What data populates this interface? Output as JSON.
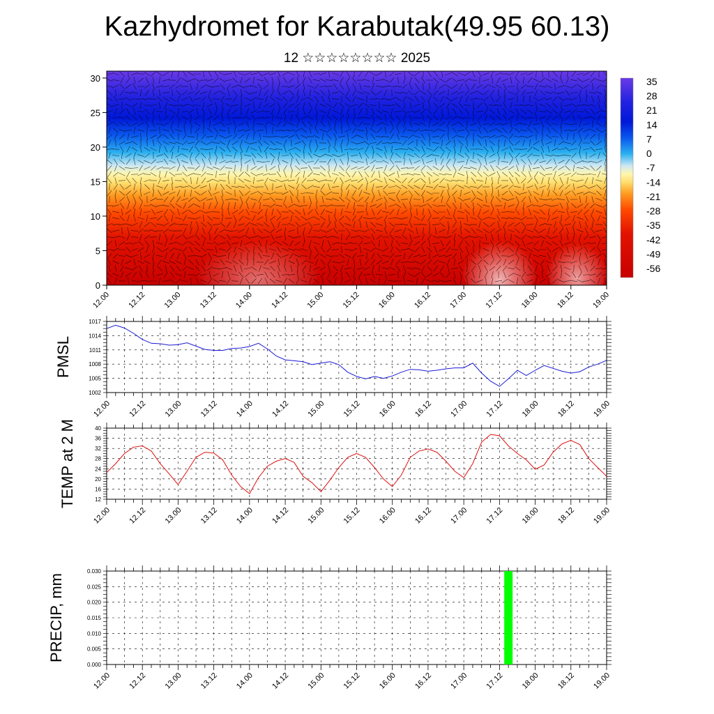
{
  "title": "Kazhydromet for Karabutak(49.95 60.13)",
  "subtitle": "12 ☆☆☆☆☆☆☆☆ 2025",
  "colors": {
    "pmsl_line": "#1a1ad6",
    "temp_line": "#dd1111",
    "precip_bar": "#00ff00"
  },
  "chart_data": [
    {
      "type": "heatmap",
      "name": "vertical-cross-section",
      "x_tick_labels": [
        "12.00",
        "12.12",
        "13.00",
        "13.12",
        "14.00",
        "14.12",
        "15.00",
        "15.12",
        "16.00",
        "16.12",
        "17.00",
        "17.12",
        "18.00",
        "18.12",
        "19.00"
      ],
      "y_ticks": [
        0,
        5,
        10,
        15,
        20,
        25,
        30
      ],
      "ylim": [
        0,
        31
      ],
      "colorbar_labels": [
        35,
        28,
        21,
        14,
        7,
        0,
        -7,
        -14,
        -21,
        -28,
        -35,
        -42,
        -49,
        -56
      ],
      "colorbar_range": [
        -60,
        40
      ]
    },
    {
      "type": "line",
      "name": "pmsl",
      "ylabel": "PMSL",
      "x_tick_labels": [
        "12.00",
        "12.12",
        "13.00",
        "13.12",
        "14.00",
        "14.12",
        "15.00",
        "15.12",
        "16.00",
        "16.12",
        "17.00",
        "17.12",
        "18.00",
        "18.12",
        "19.00"
      ],
      "y_ticks": [
        1002,
        1005,
        1008,
        1011,
        1014,
        1017
      ],
      "ylim": [
        1002,
        1017
      ],
      "x": [
        0,
        3,
        6,
        9,
        12,
        15,
        18,
        21,
        24,
        27,
        30,
        33,
        36,
        39,
        42,
        45,
        48,
        51,
        54,
        57,
        60,
        63,
        66,
        69,
        72,
        75,
        78,
        81,
        84,
        87,
        90,
        93,
        96,
        99,
        102,
        105,
        108,
        111,
        114,
        117,
        120,
        123,
        126,
        129,
        132,
        135,
        138,
        141,
        144,
        147,
        150,
        153,
        156,
        159,
        162,
        165,
        168
      ],
      "values": [
        1015.5,
        1016.2,
        1015.6,
        1014.5,
        1013.2,
        1012.4,
        1012.3,
        1012.0,
        1012.1,
        1012.5,
        1011.8,
        1011.1,
        1010.9,
        1010.9,
        1011.3,
        1011.4,
        1011.7,
        1012.4,
        1011.2,
        1009.7,
        1008.9,
        1008.7,
        1008.5,
        1007.9,
        1008.2,
        1008.5,
        1007.9,
        1006.3,
        1005.4,
        1004.9,
        1005.4,
        1005.0,
        1005.5,
        1006.3,
        1006.9,
        1006.8,
        1006.5,
        1006.7,
        1007.0,
        1007.2,
        1007.2,
        1008.2,
        1006.1,
        1004.4,
        1003.3,
        1004.9,
        1006.7,
        1005.6,
        1006.7,
        1007.7,
        1007.1,
        1006.5,
        1006.1,
        1006.4,
        1007.4,
        1008.0,
        1008.8
      ]
    },
    {
      "type": "line",
      "name": "temp-2m",
      "ylabel": "TEMP at 2 M",
      "x_tick_labels": [
        "12.00",
        "12.12",
        "13.00",
        "13.12",
        "14.00",
        "14.12",
        "15.00",
        "15.12",
        "16.00",
        "16.12",
        "17.00",
        "17.12",
        "18.00",
        "18.12",
        "19.00"
      ],
      "y_ticks": [
        12,
        16,
        20,
        24,
        28,
        32,
        36,
        40
      ],
      "ylim": [
        12,
        40
      ],
      "x": [
        0,
        3,
        6,
        9,
        12,
        15,
        18,
        21,
        24,
        27,
        30,
        33,
        36,
        39,
        42,
        45,
        48,
        51,
        54,
        57,
        60,
        63,
        66,
        69,
        72,
        75,
        78,
        81,
        84,
        87,
        90,
        93,
        96,
        99,
        102,
        105,
        108,
        111,
        114,
        117,
        120,
        123,
        126,
        129,
        132,
        135,
        138,
        141,
        144,
        147,
        150,
        153,
        156,
        159,
        162,
        165,
        168
      ],
      "values": [
        22.5,
        26.0,
        30.0,
        32.5,
        33.0,
        31.0,
        26.0,
        22.0,
        17.8,
        23.0,
        28.5,
        30.5,
        30.2,
        27.5,
        21.5,
        17.0,
        14.2,
        20.5,
        25.0,
        27.0,
        28.0,
        26.5,
        21.0,
        18.5,
        15.0,
        19.5,
        24.5,
        28.5,
        30.0,
        28.5,
        24.5,
        20.0,
        17.0,
        21.5,
        28.5,
        31.0,
        31.8,
        30.5,
        27.0,
        23.0,
        20.5,
        26.0,
        34.5,
        37.5,
        37.0,
        33.0,
        30.0,
        27.5,
        23.8,
        25.5,
        30.5,
        33.8,
        35.2,
        33.5,
        28.0,
        24.5,
        21.0
      ]
    },
    {
      "type": "bar",
      "name": "precipitation",
      "ylabel": "PRECIP, mm",
      "x_tick_labels": [
        "12.00",
        "12.12",
        "13.00",
        "13.12",
        "14.00",
        "14.12",
        "15.00",
        "15.12",
        "16.00",
        "16.12",
        "17.00",
        "17.12",
        "18.00",
        "18.12",
        "19.00"
      ],
      "y_tick_labels": [
        "0.000",
        "0.005",
        "0.010",
        "0.015",
        "0.020",
        "0.025",
        "0.030"
      ],
      "ylim": [
        0,
        0.03
      ],
      "bars": [
        {
          "x": 135,
          "value": 0.03
        }
      ]
    }
  ]
}
